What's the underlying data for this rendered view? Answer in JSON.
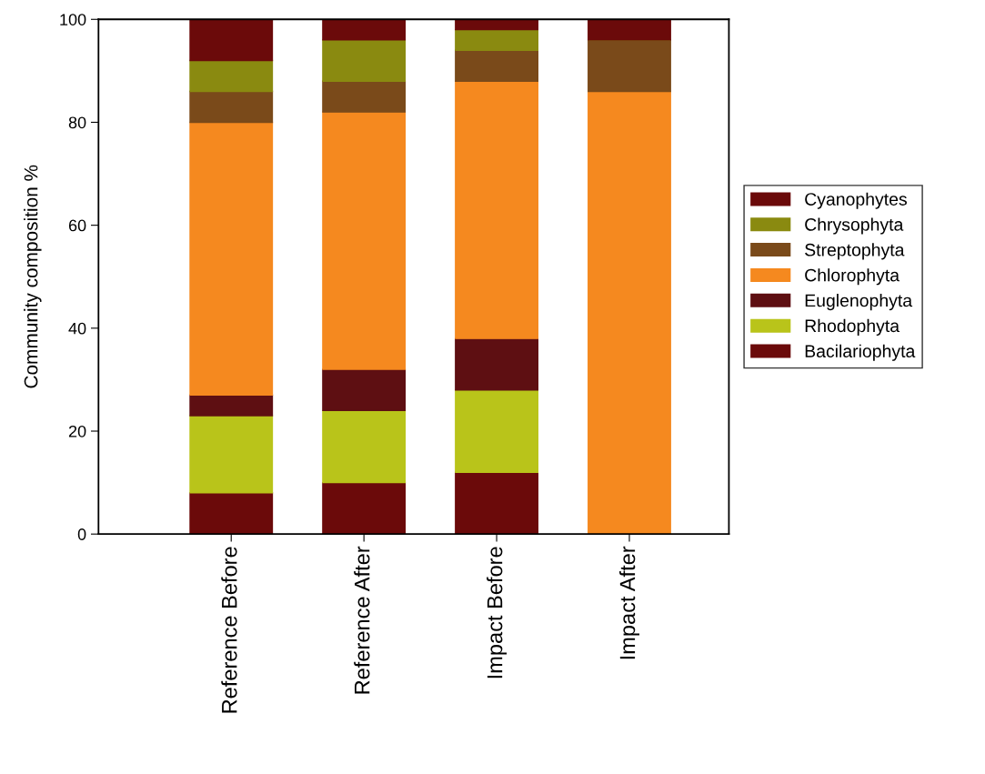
{
  "chart_data": {
    "type": "bar",
    "ylabel": "Community composition %",
    "categories": [
      "Reference Before",
      "Reference After",
      "Impact Before",
      "Impact After"
    ],
    "stacked": true,
    "ylim": [
      0,
      100
    ],
    "yticks": [
      0,
      20,
      40,
      60,
      80,
      100
    ],
    "grid": false,
    "legend": "right",
    "series": [
      {
        "name": "Bacilariophyta",
        "color": "#6b0a0a",
        "values": [
          8,
          10,
          12,
          0
        ]
      },
      {
        "name": "Rhodophyta",
        "color": "#b9c41a",
        "values": [
          15,
          14,
          16,
          0
        ]
      },
      {
        "name": "Euglenophyta",
        "color": "#5e0f12",
        "values": [
          4,
          8,
          10,
          0
        ]
      },
      {
        "name": "Chlorophyta",
        "color": "#f5891f",
        "values": [
          53,
          50,
          50,
          86
        ]
      },
      {
        "name": "Streptophyta",
        "color": "#7a4a1a",
        "values": [
          6,
          6,
          6,
          10
        ]
      },
      {
        "name": "Chrysophyta",
        "color": "#8a8a10",
        "values": [
          6,
          8,
          4,
          0
        ]
      },
      {
        "name": "Cyanophytes",
        "color": "#6b0a0a",
        "values": [
          8,
          4,
          2,
          4
        ]
      }
    ]
  }
}
